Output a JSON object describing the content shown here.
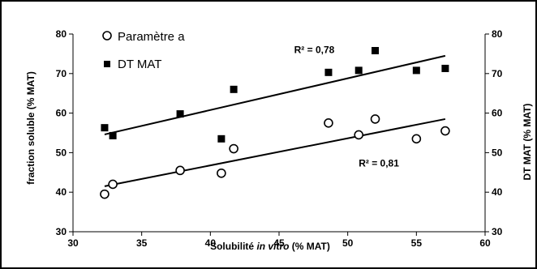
{
  "chart_data": {
    "type": "scatter",
    "xlabel_prefix": "Solubilité ",
    "xlabel_italic": "in vitro",
    "xlabel_suffix": " (% MAT)",
    "ylabel_left": "fraction soluble (% MAT)",
    "ylabel_right": "DT MAT (% MAT)",
    "xlim": [
      30,
      60
    ],
    "ylim": [
      30,
      80
    ],
    "x_ticks": [
      "30",
      "35",
      "40",
      "45",
      "50",
      "55",
      "60"
    ],
    "y_ticks": [
      "30",
      "40",
      "50",
      "60",
      "70",
      "80"
    ],
    "legend_position": "top-left",
    "series": [
      {
        "name": "Paramètre a",
        "marker": "open-circle",
        "color": "#000000",
        "x": [
          32.3,
          32.9,
          37.8,
          40.8,
          41.7,
          48.6,
          50.8,
          52.0,
          55.0,
          57.1
        ],
        "y": [
          39.5,
          42.0,
          45.5,
          44.8,
          51.0,
          57.5,
          54.5,
          58.5,
          53.5,
          55.5
        ],
        "trendline": {
          "x": [
            32.3,
            57.1
          ],
          "y": [
            41.5,
            58.5
          ]
        },
        "r2_label": "R² = 0,81",
        "r2_anchor": {
          "x": 50.8,
          "y": 46.5
        }
      },
      {
        "name": "DT MAT",
        "marker": "filled-square",
        "color": "#000000",
        "x": [
          32.3,
          32.9,
          37.8,
          40.8,
          41.7,
          48.6,
          50.8,
          52.0,
          55.0,
          57.1
        ],
        "y": [
          56.3,
          54.3,
          59.8,
          53.5,
          66.0,
          70.3,
          70.8,
          75.8,
          70.8,
          71.3
        ],
        "trendline": {
          "x": [
            32.3,
            57.1
          ],
          "y": [
            54.6,
            74.5
          ]
        },
        "r2_label": "R² = 0,78",
        "r2_anchor": {
          "x": 46.1,
          "y": 75.2
        }
      }
    ]
  }
}
